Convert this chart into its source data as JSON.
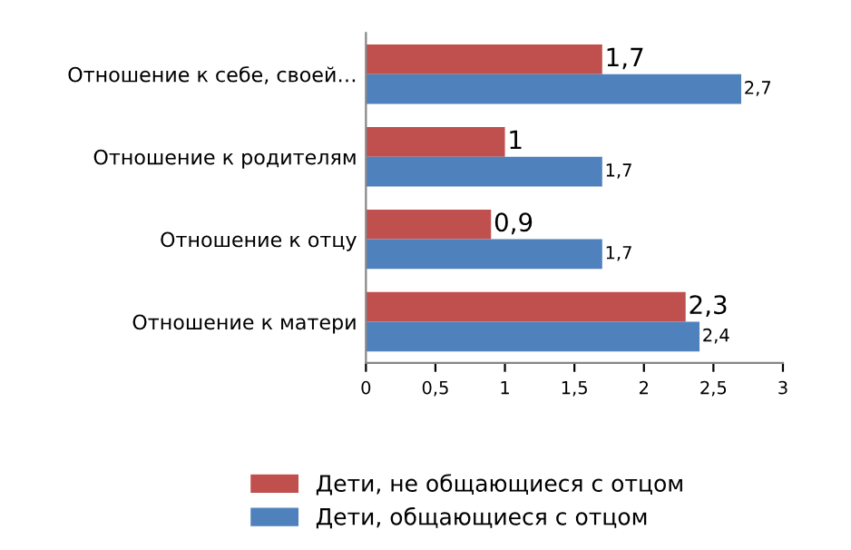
{
  "chart_data": {
    "type": "bar",
    "orientation": "horizontal",
    "categories": [
      "Отношение к себе, своей…",
      "Отношение к родителям",
      "Отношение к отцу",
      "Отношение к матери"
    ],
    "series": [
      {
        "name": "Дети, не общающиеся с отцом",
        "color": "#c0504d",
        "values": [
          1.7,
          1,
          0.9,
          2.3
        ],
        "value_labels": [
          "1,7",
          "1",
          "0,9",
          "2,3"
        ]
      },
      {
        "name": "Дети, общающиеся с отцом",
        "color": "#4f81bd",
        "values": [
          2.7,
          1.7,
          1.7,
          2.4
        ],
        "value_labels": [
          "2,7",
          "1,7",
          "1,7",
          "2,4"
        ]
      }
    ],
    "xlim": [
      0,
      3
    ],
    "xticks": [
      0,
      {
        "value": 0.5,
        "label": "0,5"
      },
      1,
      {
        "value": 1.5,
        "label": "1,5"
      },
      2,
      {
        "value": 2.5,
        "label": "2,5"
      },
      3
    ],
    "grid": false,
    "legend": "bottom"
  }
}
